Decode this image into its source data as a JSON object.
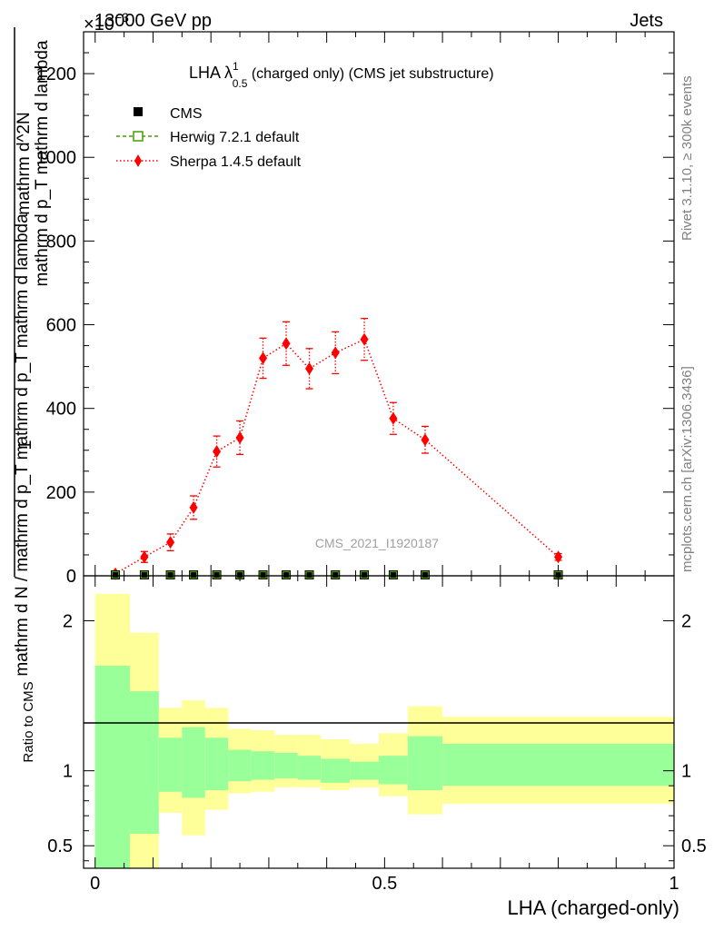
{
  "header": {
    "left": "13000 GeV pp",
    "right": "Jets",
    "exponent_base": "×10",
    "exponent_power": "−3"
  },
  "title": {
    "prefix": "LHA λ",
    "sup": "1",
    "sub": "0.5",
    "suffix": " (charged only) (CMS jet substructure)"
  },
  "legend": {
    "cms": "CMS",
    "herwig": "Herwig 7.2.1 default",
    "sherpa": "Sherpa 1.4.5 default"
  },
  "ylabel_main": {
    "numerator": "1",
    "denominator": "mathrm d N / mathrm d p_T mathrm d p_T mathrm d lambda",
    "numerator_right": "mathrm d^2N",
    "denominator_right": "mathrm d p_T mathrm d lambda"
  },
  "watermark": "CMS_2021_I1920187",
  "side_texts": {
    "rivet": "Rivet 3.1.10, ≥ 300k events",
    "mcplots": "mcplots.cern.ch [arXiv:1306.3436]"
  },
  "ratio_ylabel": "Ratio to CMS",
  "xlabel": "LHA (charged-only)",
  "colors": {
    "sherpa": "#ff0000",
    "herwig": "#4a9a00",
    "band_inner": "#99ff99",
    "band_outer": "#ffff99",
    "data": "#000000"
  },
  "chart_data": [
    {
      "type": "scatter",
      "panel": "main",
      "ylim": [
        0,
        1300
      ],
      "xlim": [
        -0.02,
        1.0
      ],
      "y_scale_note": "values ×10^-3",
      "xticks": [
        "0",
        "0.5",
        "1"
      ],
      "yticks": [
        "0",
        "200",
        "400",
        "600",
        "800",
        "1000",
        "1200"
      ],
      "series": [
        {
          "name": "CMS",
          "x": [
            0.035,
            0.085,
            0.13,
            0.17,
            0.21,
            0.25,
            0.29,
            0.33,
            0.37,
            0.415,
            0.465,
            0.515,
            0.57,
            0.8
          ],
          "values": [
            0,
            0,
            0,
            0,
            0,
            0,
            0,
            0,
            0,
            0,
            0,
            0,
            0,
            0
          ]
        },
        {
          "name": "Herwig 7.2.1 default",
          "x": [
            0.035,
            0.085,
            0.13,
            0.17,
            0.21,
            0.25,
            0.29,
            0.33,
            0.37,
            0.415,
            0.465,
            0.515,
            0.57,
            0.8
          ],
          "values": [
            0,
            0,
            0,
            0,
            0,
            0,
            0,
            0,
            0,
            0,
            0,
            0,
            0,
            0
          ]
        },
        {
          "name": "Sherpa 1.4.5 default",
          "x": [
            0.035,
            0.085,
            0.13,
            0.17,
            0.21,
            0.25,
            0.29,
            0.33,
            0.37,
            0.415,
            0.465,
            0.515,
            0.57,
            0.8
          ],
          "values": [
            5,
            45,
            80,
            163,
            297,
            330,
            520,
            555,
            495,
            533,
            565,
            376,
            325,
            45
          ],
          "errors": [
            5,
            13,
            20,
            28,
            37,
            40,
            48,
            52,
            48,
            50,
            50,
            38,
            32,
            8
          ]
        }
      ]
    },
    {
      "type": "area",
      "panel": "ratio",
      "ylim": [
        0.35,
        2.3
      ],
      "xlim": [
        -0.02,
        1.0
      ],
      "yticks": [
        "0.5",
        "1",
        "2"
      ],
      "bin_edges": [
        0.0,
        0.06,
        0.11,
        0.15,
        0.19,
        0.23,
        0.27,
        0.31,
        0.35,
        0.39,
        0.44,
        0.49,
        0.54,
        0.6,
        1.0
      ],
      "inner_up": [
        1.7,
        1.53,
        1.22,
        1.29,
        1.22,
        1.14,
        1.13,
        1.12,
        1.1,
        1.08,
        1.06,
        1.1,
        1.23,
        1.18
      ],
      "inner_down": [
        0.3,
        0.58,
        0.86,
        0.82,
        0.87,
        0.93,
        0.94,
        0.95,
        0.94,
        0.92,
        0.94,
        0.91,
        0.87,
        0.9
      ],
      "outer_up": [
        2.18,
        1.92,
        1.42,
        1.47,
        1.42,
        1.28,
        1.27,
        1.24,
        1.24,
        1.21,
        1.18,
        1.25,
        1.43,
        1.36
      ],
      "outer_down": [
        0.3,
        0.3,
        0.72,
        0.57,
        0.74,
        0.85,
        0.86,
        0.89,
        0.89,
        0.87,
        0.89,
        0.83,
        0.71,
        0.78
      ]
    }
  ]
}
